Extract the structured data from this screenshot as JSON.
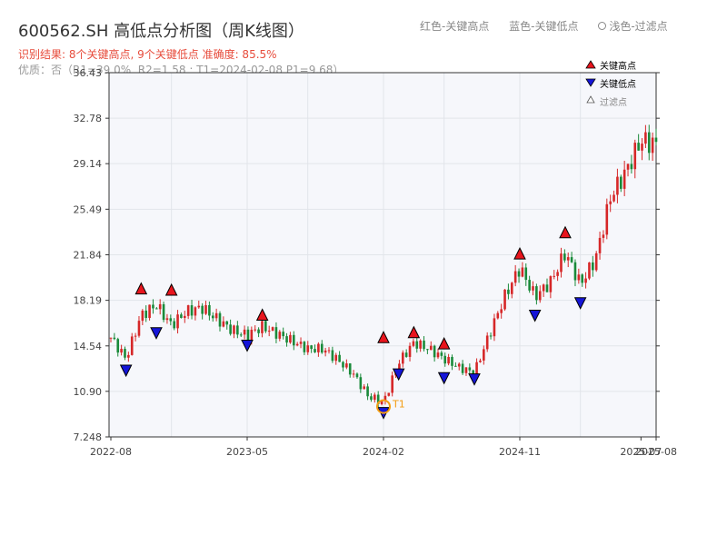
{
  "header": {
    "title": "600562.SH 高低点分析图（周K线图）",
    "result_line": "识别结果: 8个关键高点, 9个关键低点   准确度: 85.5%",
    "quality_line": "优质：否（R1=39.0%, R2=1.58 ; T1=2024-02-08 P1=9.68）"
  },
  "top_legend": {
    "red_label": "红色-关键高点",
    "blue_label": "蓝色-关键低点",
    "filtered_label": "浅色-过滤点"
  },
  "legend": {
    "high": "关键高点",
    "low": "关键低点",
    "filtered": "过滤点"
  },
  "colors": {
    "up": "#d62728",
    "down": "#1a8a3a",
    "high_marker": "#e8151d",
    "low_marker": "#1515d8",
    "t1_marker": "#f39c12",
    "plot_bg": "#f6f7fb",
    "grid": "#e2e5ea"
  },
  "chart_data": {
    "type": "candlestick",
    "title": "600562.SH 高低点分析图（周K线图）",
    "y_ticks": [
      "36.43",
      "32.78",
      "29.14",
      "25.49",
      "21.84",
      "18.19",
      "14.54",
      "10.90",
      "7.248"
    ],
    "ylim": [
      7.248,
      36.43
    ],
    "x_ticks": [
      "2022-08",
      "2023-05",
      "2024-02",
      "2024-11",
      "2025-07",
      "2025-08"
    ],
    "xlim": [
      "2022-08",
      "2025-08"
    ],
    "grid": true,
    "legend_position": "top-right",
    "waypoints": [
      [
        "2022-08",
        15.2
      ],
      [
        "2022-09",
        13.5
      ],
      [
        "2022-10",
        17.0
      ],
      [
        "2022-11",
        17.8
      ],
      [
        "2022-12",
        16.2
      ],
      [
        "2023-01",
        17.3
      ],
      [
        "2023-02",
        17.6
      ],
      [
        "2023-03",
        16.7
      ],
      [
        "2023-04",
        15.8
      ],
      [
        "2023-05",
        15.4
      ],
      [
        "2023-06",
        16.1
      ],
      [
        "2023-07",
        15.5
      ],
      [
        "2023-08",
        14.9
      ],
      [
        "2023-09",
        14.3
      ],
      [
        "2023-10",
        14.3
      ],
      [
        "2023-11",
        13.4
      ],
      [
        "2023-12",
        12.3
      ],
      [
        "2024-01",
        10.5
      ],
      [
        "2024-02",
        10.0
      ],
      [
        "2024-03",
        13.2
      ],
      [
        "2024-04",
        14.8
      ],
      [
        "2024-05",
        14.3
      ],
      [
        "2024-06",
        13.5
      ],
      [
        "2024-07",
        12.8
      ],
      [
        "2024-08",
        12.4
      ],
      [
        "2024-09",
        15.5
      ],
      [
        "2024-10",
        18.5
      ],
      [
        "2024-11",
        20.8
      ],
      [
        "2024-12",
        18.5
      ],
      [
        "2025-01",
        19.6
      ],
      [
        "2025-02",
        22.0
      ],
      [
        "2025-03",
        19.5
      ],
      [
        "2025-04",
        21.5
      ],
      [
        "2025-05",
        26.5
      ],
      [
        "2025-06",
        28.5
      ],
      [
        "2025-07",
        31.0
      ],
      [
        "2025-08",
        30.7
      ]
    ],
    "key_highs": [
      {
        "date": "2022-10",
        "value": 18.7
      },
      {
        "date": "2022-12",
        "value": 18.6
      },
      {
        "date": "2023-06",
        "value": 16.6
      },
      {
        "date": "2024-02",
        "value": 14.8
      },
      {
        "date": "2024-04",
        "value": 15.2
      },
      {
        "date": "2024-06",
        "value": 14.3
      },
      {
        "date": "2024-11",
        "value": 21.5
      },
      {
        "date": "2025-02",
        "value": 23.2
      }
    ],
    "key_lows": [
      {
        "date": "2022-09",
        "value": 13.0
      },
      {
        "date": "2022-11",
        "value": 16.0
      },
      {
        "date": "2023-05",
        "value": 15.0
      },
      {
        "date": "2024-02",
        "value": 9.6
      },
      {
        "date": "2024-03",
        "value": 12.7
      },
      {
        "date": "2024-06",
        "value": 12.4
      },
      {
        "date": "2024-08",
        "value": 12.3
      },
      {
        "date": "2024-12",
        "value": 17.4
      },
      {
        "date": "2025-03",
        "value": 18.4
      }
    ],
    "t1": {
      "label": "T1",
      "date": "2024-02",
      "value": 9.68
    }
  }
}
